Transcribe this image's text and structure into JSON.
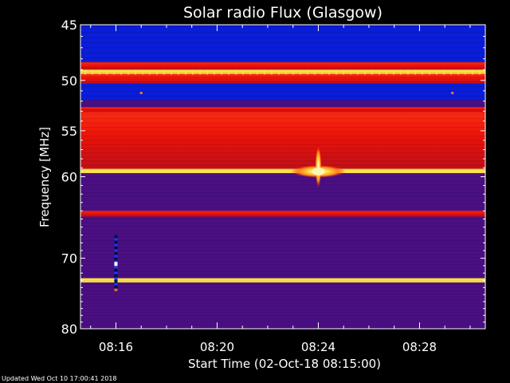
{
  "chart_data": {
    "type": "heatmap",
    "title": "Solar radio Flux (Glasgow)",
    "xlabel": "Start Time (02-Oct-18 08:15:00)",
    "ylabel": "Frequency [MHz]",
    "xlim_minutes": [
      -0.4,
      15.6
    ],
    "ylim_mhz": [
      45,
      80
    ],
    "y_scale": "log",
    "y_ticks": [
      45,
      50,
      55,
      60,
      70,
      80
    ],
    "y_tick_labels": [
      "45",
      "50",
      "55",
      "60",
      "70",
      "80"
    ],
    "x_ticks": [
      "08:16",
      "08:20",
      "08:24",
      "08:28"
    ],
    "x_tick_minutes": [
      1,
      5,
      9,
      13
    ],
    "colormap": "red-temperature",
    "colors": {
      "background": "#4b0f84",
      "deep_blue": "#0a1dd8",
      "red": "#ff1a0a",
      "bright_line": "#ffe14a",
      "frame": "#ffffff"
    },
    "bands_mhz": [
      {
        "from": 45.0,
        "to": 48.3,
        "level": "deep_blue"
      },
      {
        "from": 48.3,
        "to": 49.0,
        "level": "red"
      },
      {
        "from": 49.0,
        "to": 49.4,
        "level": "bright_line"
      },
      {
        "from": 49.4,
        "to": 50.3,
        "level": "red"
      },
      {
        "from": 50.3,
        "to": 51.9,
        "level": "deep_blue"
      },
      {
        "from": 51.9,
        "to": 52.6,
        "level": "background"
      },
      {
        "from": 52.6,
        "to": 53.1,
        "level": "red"
      },
      {
        "from": 53.1,
        "to": 59.1,
        "level": "red"
      },
      {
        "from": 59.1,
        "to": 59.6,
        "level": "bright_line"
      },
      {
        "from": 59.6,
        "to": 64.0,
        "level": "background"
      },
      {
        "from": 64.0,
        "to": 64.7,
        "level": "red"
      },
      {
        "from": 64.7,
        "to": 72.7,
        "level": "background"
      },
      {
        "from": 72.7,
        "to": 73.3,
        "level": "bright_line"
      },
      {
        "from": 73.3,
        "to": 80.0,
        "level": "background"
      }
    ],
    "burst": {
      "time_minutes": 9.0,
      "freq_mhz": 59.4
    },
    "gap_marker": {
      "time_minutes": 1.0,
      "freq_from_mhz": 67.0,
      "freq_to_mhz": 74.5
    }
  },
  "footer": {
    "updated": "Updated Wed Oct 10 17:00:41 2018"
  }
}
